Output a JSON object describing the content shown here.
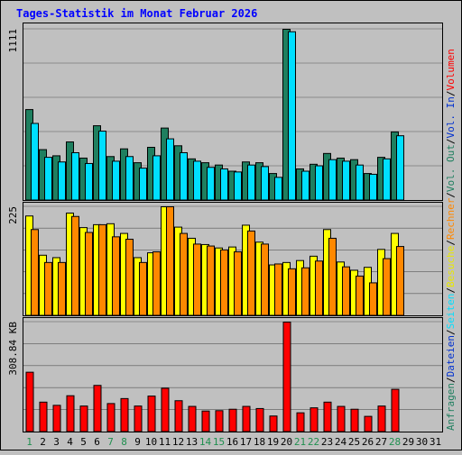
{
  "chart_data": {
    "type": "bar",
    "title": "Tages-Statistik im Monat Februar 2026",
    "days": [
      "1",
      "2",
      "3",
      "4",
      "5",
      "6",
      "7",
      "8",
      "9",
      "10",
      "11",
      "12",
      "13",
      "14",
      "15",
      "16",
      "17",
      "18",
      "19",
      "20",
      "21",
      "22",
      "23",
      "24",
      "25",
      "26",
      "27",
      "28",
      "29",
      "30",
      "31"
    ],
    "weekend_days": [
      "1",
      "7",
      "8",
      "14",
      "15",
      "21",
      "22",
      "28"
    ],
    "panels": [
      {
        "id": "top",
        "scale_label": "1111",
        "ymax": 1111,
        "series": [
          {
            "name": "Anfragen",
            "color": "#1f7f5f",
            "values": [
              590,
              330,
              290,
              380,
              275,
              485,
              285,
              335,
              245,
              345,
              470,
              355,
              270,
              245,
              230,
              190,
              250,
              245,
              175,
              1111,
              205,
              235,
              305,
              275,
              265,
              175,
              280,
              445,
              null,
              null,
              null
            ]
          },
          {
            "name": "Seiten",
            "color": "#00dfff",
            "values": [
              500,
              280,
              250,
              310,
              240,
              450,
              255,
              285,
              210,
              290,
              400,
              310,
              255,
              215,
              205,
              185,
              230,
              220,
              150,
              1095,
              190,
              225,
              265,
              255,
              230,
              170,
              270,
              420,
              null,
              null,
              null
            ]
          }
        ]
      },
      {
        "id": "middle",
        "scale_label": "225",
        "ymax": 225,
        "series": [
          {
            "name": "Besuche",
            "color": "#ffff00",
            "values": [
              206,
              125,
              120,
              212,
              182,
              188,
              190,
              170,
              120,
              130,
              225,
              183,
              160,
              147,
              140,
              142,
              187,
              152,
              105,
              110,
              114,
              123,
              178,
              111,
              94,
              100,
              137,
              170,
              null,
              null,
              null
            ]
          },
          {
            "name": "Rechner",
            "color": "#ff8800",
            "values": [
              178,
              110,
              110,
              205,
              172,
              188,
              163,
              158,
              110,
              132,
              225,
              170,
              148,
              144,
              136,
              132,
              175,
              148,
              107,
              97,
              99,
              113,
              160,
              101,
              82,
              68,
              118,
              143,
              null,
              null,
              null
            ]
          }
        ]
      },
      {
        "id": "bottom",
        "scale_label": "308.84 KB",
        "ymax": 308.84,
        "series": [
          {
            "name": "Volumen",
            "color": "#ff0000",
            "values": [
              168,
              84,
              75,
              102,
              73,
              131,
              80,
              94,
              73,
              101,
              123,
              88,
              72,
              59,
              60,
              64,
              72,
              66,
              45,
              308.84,
              54,
              68,
              84,
              72,
              64,
              44,
              73,
              120,
              null,
              null,
              null
            ]
          }
        ]
      }
    ],
    "legend": [
      {
        "text": "Anfragen",
        "color": "#1f7f5f"
      },
      {
        "text": "/",
        "color": "#000000"
      },
      {
        "text": "Dateien",
        "color": "#0030d0"
      },
      {
        "text": "/",
        "color": "#000000"
      },
      {
        "text": "Seiten",
        "color": "#00dfff"
      },
      {
        "text": "/",
        "color": "#000000"
      },
      {
        "text": "Besuche",
        "color": "#e8e800"
      },
      {
        "text": "/",
        "color": "#000000"
      },
      {
        "text": "Rechner",
        "color": "#ff8800"
      },
      {
        "text": "/",
        "color": "#000000"
      },
      {
        "text": "Vol. Out",
        "color": "#1f7f5f"
      },
      {
        "text": "/",
        "color": "#000000"
      },
      {
        "text": "Vol. In",
        "color": "#0030d0"
      },
      {
        "text": "/",
        "color": "#000000"
      },
      {
        "text": "Volumen",
        "color": "#ff0000"
      }
    ],
    "colors": {
      "background": "#c0c0c0",
      "title": "#0000ff",
      "weekday_label": "#000000",
      "weekend_label": "#1f8f4f",
      "grid": "#000000"
    }
  }
}
